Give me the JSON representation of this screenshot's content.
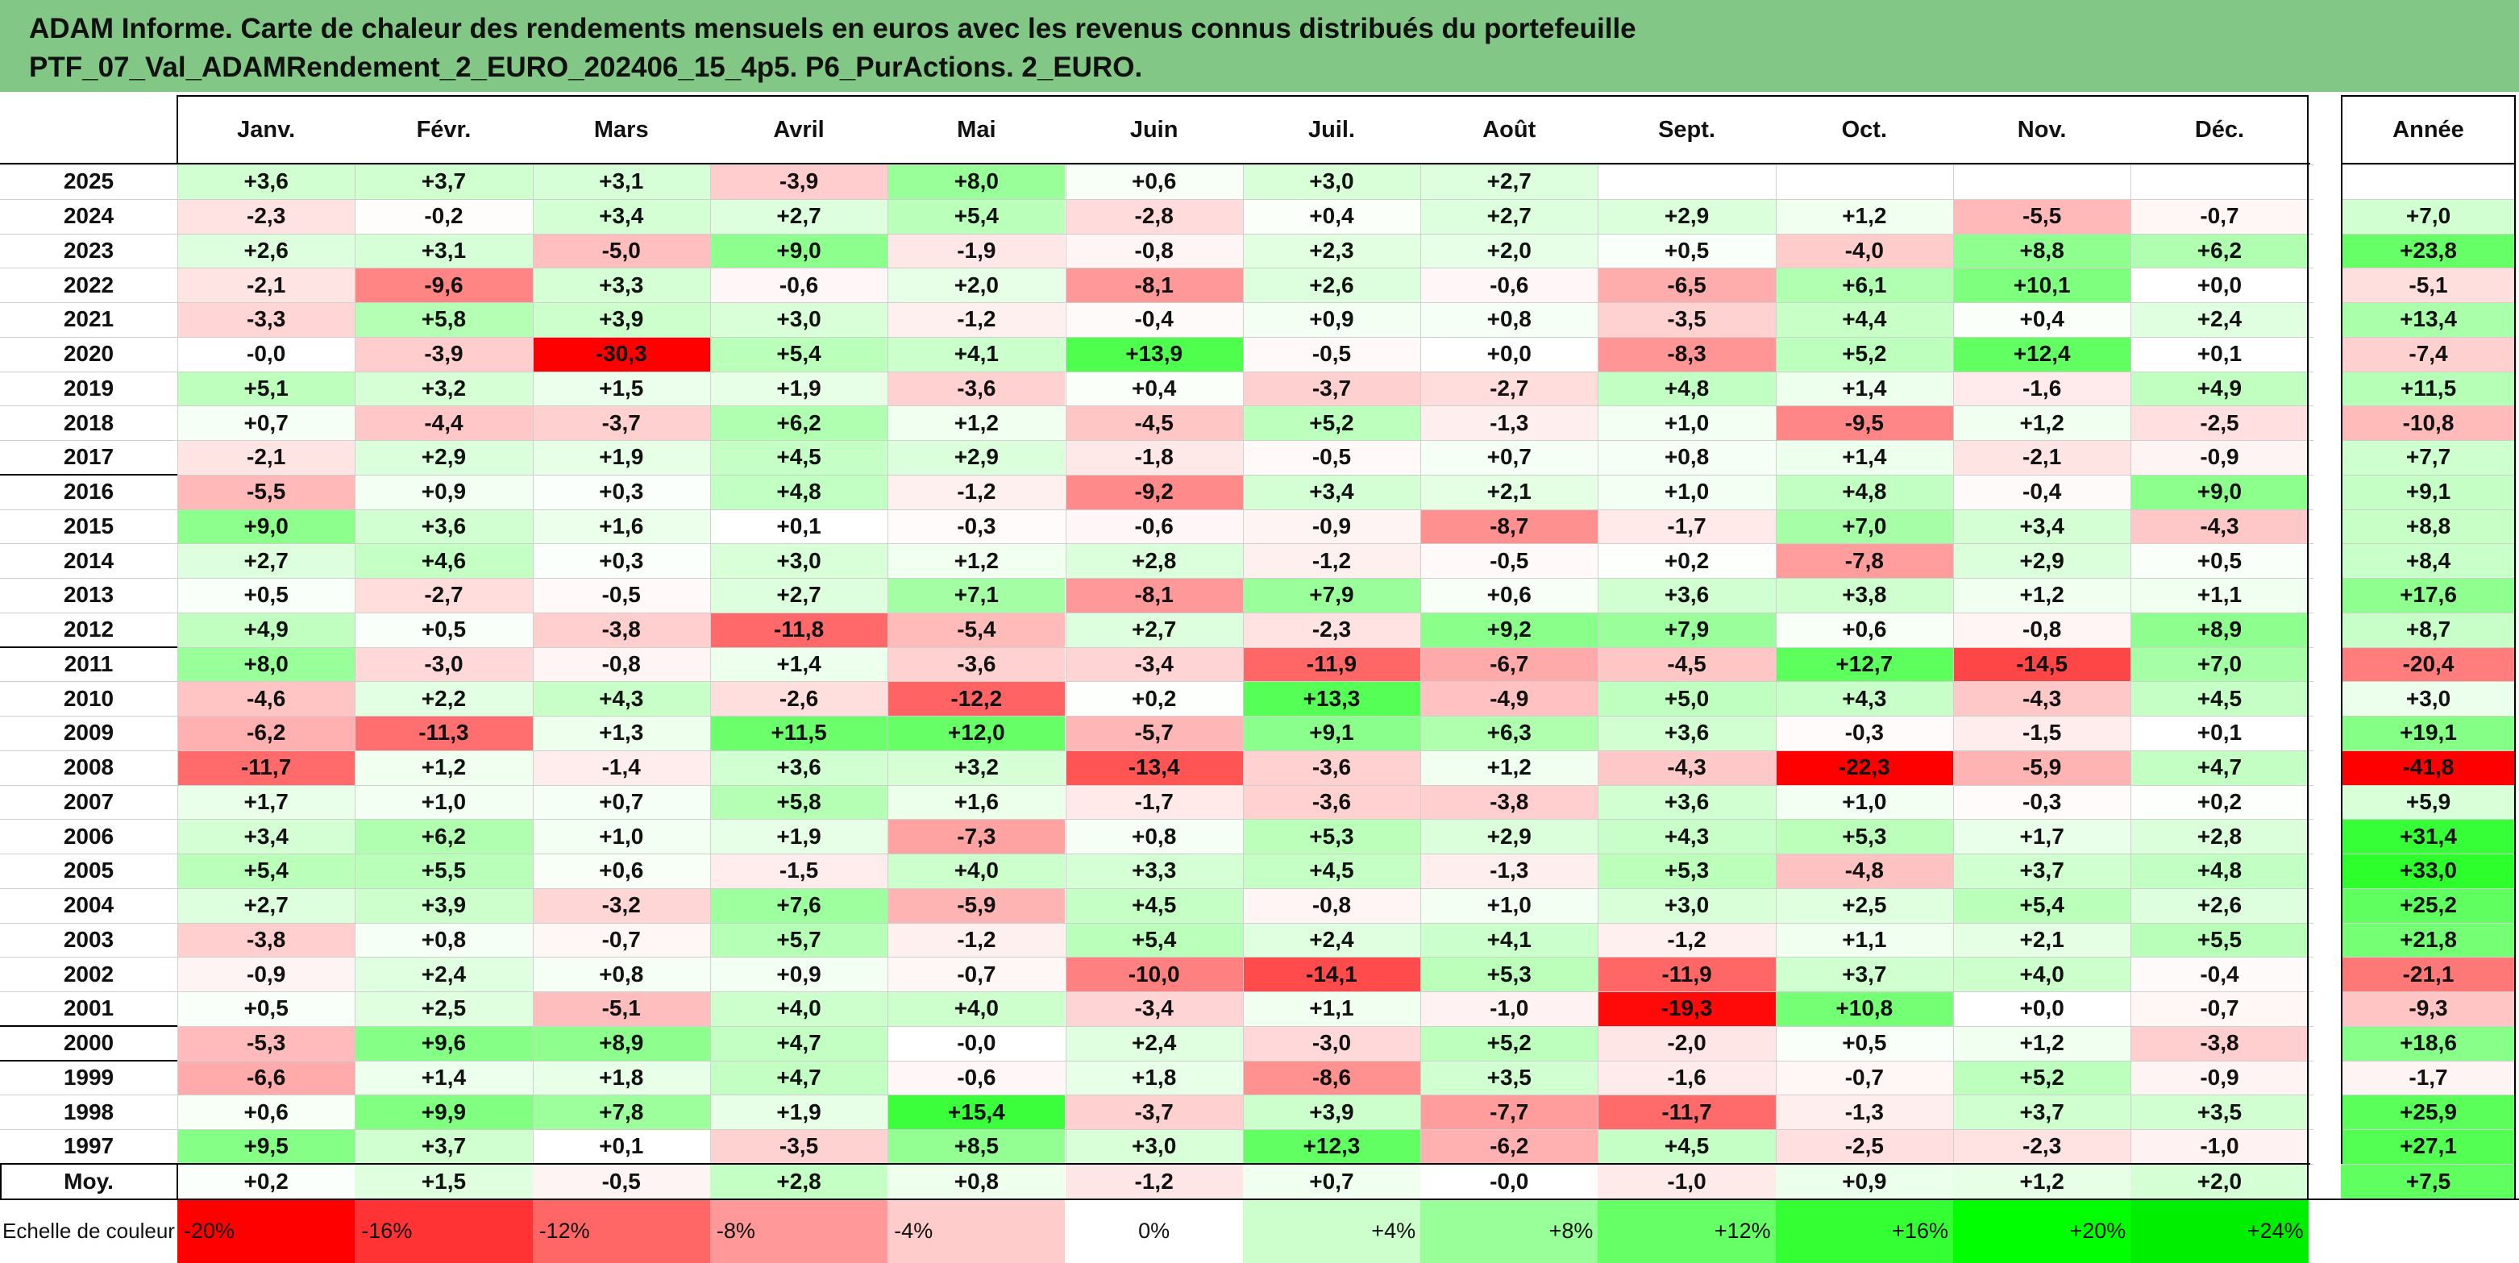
{
  "title": {
    "line1": "ADAM Informe. Carte de chaleur des rendements mensuels en euros avec les revenus connus distribués du portefeuille",
    "line2": "PTF_07_Val_ADAMRendement_2_EURO_202406_15_4p5. P6_PurActions. 2_EURO."
  },
  "chart_data": {
    "type": "heatmap",
    "columns": [
      "Janv.",
      "Févr.",
      "Mars",
      "Avril",
      "Mai",
      "Juin",
      "Juil.",
      "Août",
      "Sept.",
      "Oct.",
      "Nov.",
      "Déc."
    ],
    "year_column_label": "Année",
    "rows": [
      {
        "year": "2025",
        "months": [
          "+3,6",
          "+3,7",
          "+3,1",
          "-3,9",
          "+8,0",
          "+0,6",
          "+3,0",
          "+2,7",
          "",
          "",
          "",
          ""
        ],
        "annual": ""
      },
      {
        "year": "2024",
        "months": [
          "-2,3",
          "-0,2",
          "+3,4",
          "+2,7",
          "+5,4",
          "-2,8",
          "+0,4",
          "+2,7",
          "+2,9",
          "+1,2",
          "-5,5",
          "-0,7"
        ],
        "annual": "+7,0"
      },
      {
        "year": "2023",
        "months": [
          "+2,6",
          "+3,1",
          "-5,0",
          "+9,0",
          "-1,9",
          "-0,8",
          "+2,3",
          "+2,0",
          "+0,5",
          "-4,0",
          "+8,8",
          "+6,2"
        ],
        "annual": "+23,8"
      },
      {
        "year": "2022",
        "months": [
          "-2,1",
          "-9,6",
          "+3,3",
          "-0,6",
          "+2,0",
          "-8,1",
          "+2,6",
          "-0,6",
          "-6,5",
          "+6,1",
          "+10,1",
          "+0,0"
        ],
        "annual": "-5,1"
      },
      {
        "year": "2021",
        "months": [
          "-3,3",
          "+5,8",
          "+3,9",
          "+3,0",
          "-1,2",
          "-0,4",
          "+0,9",
          "+0,8",
          "-3,5",
          "+4,4",
          "+0,4",
          "+2,4"
        ],
        "annual": "+13,4"
      },
      {
        "year": "2020",
        "months": [
          "-0,0",
          "-3,9",
          "-30,3",
          "+5,4",
          "+4,1",
          "+13,9",
          "-0,5",
          "+0,0",
          "-8,3",
          "+5,2",
          "+12,4",
          "+0,1"
        ],
        "annual": "-7,4"
      },
      {
        "year": "2019",
        "months": [
          "+5,1",
          "+3,2",
          "+1,5",
          "+1,9",
          "-3,6",
          "+0,4",
          "-3,7",
          "-2,7",
          "+4,8",
          "+1,4",
          "-1,6",
          "+4,9"
        ],
        "annual": "+11,5"
      },
      {
        "year": "2018",
        "months": [
          "+0,7",
          "-4,4",
          "-3,7",
          "+6,2",
          "+1,2",
          "-4,5",
          "+5,2",
          "-1,3",
          "+1,0",
          "-9,5",
          "+1,2",
          "-2,5"
        ],
        "annual": "-10,8"
      },
      {
        "year": "2017",
        "months": [
          "-2,1",
          "+2,9",
          "+1,9",
          "+4,5",
          "+2,9",
          "-1,8",
          "-0,5",
          "+0,7",
          "+0,8",
          "+1,4",
          "-2,1",
          "-0,9"
        ],
        "annual": "+7,7"
      },
      {
        "year": "2016",
        "months": [
          "-5,5",
          "+0,9",
          "+0,3",
          "+4,8",
          "-1,2",
          "-9,2",
          "+3,4",
          "+2,1",
          "+1,0",
          "+4,8",
          "-0,4",
          "+9,0"
        ],
        "annual": "+9,1"
      },
      {
        "year": "2015",
        "months": [
          "+9,0",
          "+3,6",
          "+1,6",
          "+0,1",
          "-0,3",
          "-0,6",
          "-0,9",
          "-8,7",
          "-1,7",
          "+7,0",
          "+3,4",
          "-4,3"
        ],
        "annual": "+8,8"
      },
      {
        "year": "2014",
        "months": [
          "+2,7",
          "+4,6",
          "+0,3",
          "+3,0",
          "+1,2",
          "+2,8",
          "-1,2",
          "-0,5",
          "+0,2",
          "-7,8",
          "+2,9",
          "+0,5"
        ],
        "annual": "+8,4"
      },
      {
        "year": "2013",
        "months": [
          "+0,5",
          "-2,7",
          "-0,5",
          "+2,7",
          "+7,1",
          "-8,1",
          "+7,9",
          "+0,6",
          "+3,6",
          "+3,8",
          "+1,2",
          "+1,1"
        ],
        "annual": "+17,6"
      },
      {
        "year": "2012",
        "months": [
          "+4,9",
          "+0,5",
          "-3,8",
          "-11,8",
          "-5,4",
          "+2,7",
          "-2,3",
          "+9,2",
          "+7,9",
          "+0,6",
          "-0,8",
          "+8,9"
        ],
        "annual": "+8,7"
      },
      {
        "year": "2011",
        "months": [
          "+8,0",
          "-3,0",
          "-0,8",
          "+1,4",
          "-3,6",
          "-3,4",
          "-11,9",
          "-6,7",
          "-4,5",
          "+12,7",
          "-14,5",
          "+7,0"
        ],
        "annual": "-20,4"
      },
      {
        "year": "2010",
        "months": [
          "-4,6",
          "+2,2",
          "+4,3",
          "-2,6",
          "-12,2",
          "+0,2",
          "+13,3",
          "-4,9",
          "+5,0",
          "+4,3",
          "-4,3",
          "+4,5"
        ],
        "annual": "+3,0"
      },
      {
        "year": "2009",
        "months": [
          "-6,2",
          "-11,3",
          "+1,3",
          "+11,5",
          "+12,0",
          "-5,7",
          "+9,1",
          "+6,3",
          "+3,6",
          "-0,3",
          "-1,5",
          "+0,1"
        ],
        "annual": "+19,1"
      },
      {
        "year": "2008",
        "months": [
          "-11,7",
          "+1,2",
          "-1,4",
          "+3,6",
          "+3,2",
          "-13,4",
          "-3,6",
          "+1,2",
          "-4,3",
          "-22,3",
          "-5,9",
          "+4,7"
        ],
        "annual": "-41,8"
      },
      {
        "year": "2007",
        "months": [
          "+1,7",
          "+1,0",
          "+0,7",
          "+5,8",
          "+1,6",
          "-1,7",
          "-3,6",
          "-3,8",
          "+3,6",
          "+1,0",
          "-0,3",
          "+0,2"
        ],
        "annual": "+5,9"
      },
      {
        "year": "2006",
        "months": [
          "+3,4",
          "+6,2",
          "+1,0",
          "+1,9",
          "-7,3",
          "+0,8",
          "+5,3",
          "+2,9",
          "+4,3",
          "+5,3",
          "+1,7",
          "+2,8"
        ],
        "annual": "+31,4"
      },
      {
        "year": "2005",
        "months": [
          "+5,4",
          "+5,5",
          "+0,6",
          "-1,5",
          "+4,0",
          "+3,3",
          "+4,5",
          "-1,3",
          "+5,3",
          "-4,8",
          "+3,7",
          "+4,8"
        ],
        "annual": "+33,0"
      },
      {
        "year": "2004",
        "months": [
          "+2,7",
          "+3,9",
          "-3,2",
          "+7,6",
          "-5,9",
          "+4,5",
          "-0,8",
          "+1,0",
          "+3,0",
          "+2,5",
          "+5,4",
          "+2,6"
        ],
        "annual": "+25,2"
      },
      {
        "year": "2003",
        "months": [
          "-3,8",
          "+0,8",
          "-0,7",
          "+5,7",
          "-1,2",
          "+5,4",
          "+2,4",
          "+4,1",
          "-1,2",
          "+1,1",
          "+2,1",
          "+5,5"
        ],
        "annual": "+21,8"
      },
      {
        "year": "2002",
        "months": [
          "-0,9",
          "+2,4",
          "+0,8",
          "+0,9",
          "-0,7",
          "-10,0",
          "-14,1",
          "+5,3",
          "-11,9",
          "+3,7",
          "+4,0",
          "-0,4"
        ],
        "annual": "-21,1"
      },
      {
        "year": "2001",
        "months": [
          "+0,5",
          "+2,5",
          "-5,1",
          "+4,0",
          "+4,0",
          "-3,4",
          "+1,1",
          "-1,0",
          "-19,3",
          "+10,8",
          "+0,0",
          "-0,7"
        ],
        "annual": "-9,3"
      },
      {
        "year": "2000",
        "months": [
          "-5,3",
          "+9,6",
          "+8,9",
          "+4,7",
          "-0,0",
          "+2,4",
          "-3,0",
          "+5,2",
          "-2,0",
          "+0,5",
          "+1,2",
          "-3,8"
        ],
        "annual": "+18,6"
      },
      {
        "year": "1999",
        "months": [
          "-6,6",
          "+1,4",
          "+1,8",
          "+4,7",
          "-0,6",
          "+1,8",
          "-8,6",
          "+3,5",
          "-1,6",
          "-0,7",
          "+5,2",
          "-0,9"
        ],
        "annual": "-1,7"
      },
      {
        "year": "1998",
        "months": [
          "+0,6",
          "+9,9",
          "+7,8",
          "+1,9",
          "+15,4",
          "-3,7",
          "+3,9",
          "-7,7",
          "-11,7",
          "-1,3",
          "+3,7",
          "+3,5"
        ],
        "annual": "+25,9"
      },
      {
        "year": "1997",
        "months": [
          "+9,5",
          "+3,7",
          "+0,1",
          "-3,5",
          "+8,5",
          "+3,0",
          "+12,3",
          "-6,2",
          "+4,5",
          "-2,5",
          "-2,3",
          "-1,0"
        ],
        "annual": "+27,1"
      }
    ],
    "average": {
      "label": "Moy.",
      "months": [
        "+0,2",
        "+1,5",
        "-0,5",
        "+2,8",
        "+0,8",
        "-1,2",
        "+0,7",
        "-0,0",
        "-1,0",
        "+0,9",
        "+1,2",
        "+2,0"
      ],
      "annual": "+7,5"
    },
    "color_scale": {
      "label": "Echelle de couleur",
      "stops": [
        {
          "label": "-20%",
          "value": -20,
          "color": "#ff0000"
        },
        {
          "label": "-16%",
          "value": -16,
          "color": "#ff3333"
        },
        {
          "label": "-12%",
          "value": -12,
          "color": "#ff6666"
        },
        {
          "label": "-8%",
          "value": -8,
          "color": "#ff9999"
        },
        {
          "label": "-4%",
          "value": -4,
          "color": "#ffcccc"
        },
        {
          "label": "0%",
          "value": 0,
          "color": "#ffffff"
        },
        {
          "label": "+4%",
          "value": 4,
          "color": "#ccffcc"
        },
        {
          "label": "+8%",
          "value": 8,
          "color": "#99ff99"
        },
        {
          "label": "+12%",
          "value": 12,
          "color": "#66ff66"
        },
        {
          "label": "+16%",
          "value": 16,
          "color": "#33ff33"
        },
        {
          "label": "+20%",
          "value": 20,
          "color": "#00ff00"
        },
        {
          "label": "+24%",
          "value": 24,
          "color": "#00ee00"
        }
      ]
    },
    "monthly_color_range": [
      -20,
      20
    ],
    "annual_color_range": [
      -40,
      40
    ]
  }
}
